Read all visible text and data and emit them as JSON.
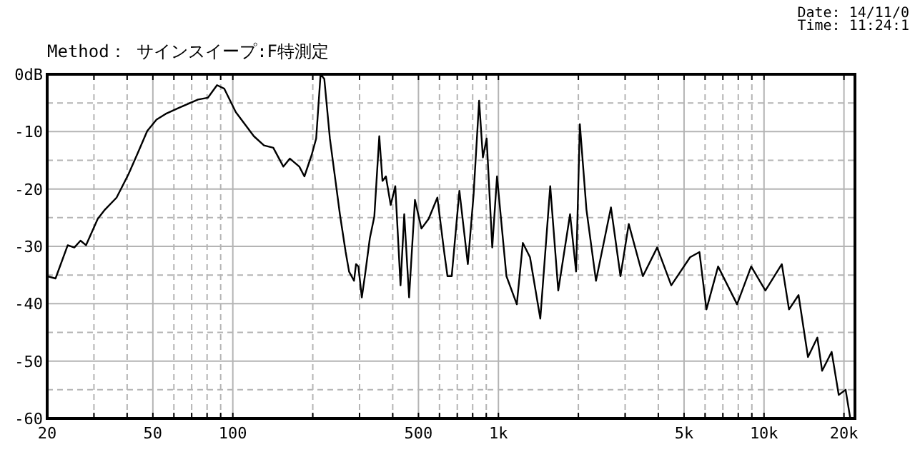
{
  "chart_data": {
    "type": "line",
    "title": "Method： サインスイープ:F特測定",
    "annotations": [
      "Date: 14/11/0",
      "Time: 11:24:1"
    ],
    "log": "x",
    "grid": true,
    "marker": "none",
    "line_style": "solid",
    "xlim": [
      20,
      22000
    ],
    "ylim": [
      -60,
      0
    ],
    "xticks": [
      20,
      {
        "value": 30,
        "label": null
      },
      {
        "value": 40,
        "label": null
      },
      50,
      {
        "value": 60,
        "label": null
      },
      {
        "value": 70,
        "label": null
      },
      {
        "value": 80,
        "label": null
      },
      {
        "value": 90,
        "label": null
      },
      100,
      {
        "value": 200,
        "label": null
      },
      {
        "value": 300,
        "label": null
      },
      {
        "value": 400,
        "label": null
      },
      500,
      {
        "value": 600,
        "label": null
      },
      {
        "value": 700,
        "label": null
      },
      {
        "value": 800,
        "label": null
      },
      {
        "value": 900,
        "label": null
      },
      {
        "value": 1000,
        "label": "1k"
      },
      {
        "value": 2000,
        "label": null
      },
      {
        "value": 3000,
        "label": null
      },
      {
        "value": 4000,
        "label": null
      },
      {
        "value": 5000,
        "label": "5k"
      },
      {
        "value": 6000,
        "label": null
      },
      {
        "value": 7000,
        "label": null
      },
      {
        "value": 8000,
        "label": null
      },
      {
        "value": 9000,
        "label": null
      },
      {
        "value": 10000,
        "label": "10k"
      },
      {
        "value": 20000,
        "label": "20k"
      }
    ],
    "yticks": [
      {
        "value": 0,
        "label": "0dB"
      },
      {
        "value": -5,
        "label": null
      },
      -10,
      {
        "value": -15,
        "label": null
      },
      -20,
      {
        "value": -25,
        "label": null
      },
      -30,
      {
        "value": -35,
        "label": null
      },
      -40,
      {
        "value": -45,
        "label": null
      },
      -50,
      {
        "value": -55,
        "label": null
      },
      -60
    ],
    "series": [
      {
        "color": "#000000",
        "x": [
          20,
          21.5,
          23.9,
          25.3,
          26.7,
          28,
          31,
          33,
          36.5,
          40.5,
          43.9,
          47.6,
          51.6,
          55.9,
          63,
          74,
          80.5,
          87.2,
          92.8,
          102.6,
          120,
          131,
          142,
          155,
          164,
          178,
          186,
          198,
          206,
          214,
          221,
          232,
          241,
          253,
          266,
          274,
          286,
          291,
          297,
          306,
          315,
          328,
          341,
          356,
          366,
          377,
          393,
          409,
          428,
          442,
          461,
          485,
          513,
          546,
          589,
          625,
          643,
          667,
          713,
          767,
          806,
          846,
          874,
          903,
          948,
          988,
          1072,
          1173,
          1236,
          1315,
          1438,
          1567,
          1680,
          1861,
          1961,
          2026,
          2145,
          2330,
          2653,
          2881,
          3096,
          3499,
          3960,
          4475,
          5268,
          5714,
          6070,
          6717,
          7918,
          8947,
          10120,
          11670,
          12420,
          13490,
          14640,
          15880,
          16550,
          17980,
          19110,
          20290,
          21130
        ],
        "values": [
          -35.2,
          -35.6,
          -29.8,
          -30.2,
          -29,
          -29.8,
          -25.2,
          -23.6,
          -21.5,
          -17.4,
          -13.7,
          -9.9,
          -7.9,
          -6.9,
          -5.8,
          -4.4,
          -4.1,
          -1.9,
          -2.5,
          -6.6,
          -10.8,
          -12.4,
          -12.8,
          -16.1,
          -14.7,
          -16.1,
          -17.8,
          -14.1,
          -11.2,
          0,
          -0.8,
          -11.2,
          -17,
          -24.4,
          -31,
          -34.4,
          -36,
          -33.1,
          -33.5,
          -38.9,
          -34.8,
          -28.6,
          -24.8,
          -10.8,
          -18.6,
          -17.8,
          -22.8,
          -19.5,
          -36.8,
          -24.4,
          -38.9,
          -21.9,
          -26.9,
          -25.2,
          -21.5,
          -31,
          -35.2,
          -35.2,
          -20.3,
          -33.1,
          -21.1,
          -4.6,
          -14.5,
          -11.2,
          -30.2,
          -17.8,
          -35.2,
          -40.1,
          -29.4,
          -31.9,
          -42.6,
          -19.5,
          -37.7,
          -24.4,
          -34.4,
          -8.7,
          -23.6,
          -36,
          -23.2,
          -35.2,
          -26.1,
          -35.2,
          -30.2,
          -36.8,
          -31.9,
          -31,
          -41,
          -33.5,
          -40.1,
          -33.5,
          -37.7,
          -33.1,
          -41,
          -38.5,
          -49.3,
          -45.9,
          -51.7,
          -48.4,
          -55.9,
          -55,
          -60
        ]
      }
    ]
  }
}
